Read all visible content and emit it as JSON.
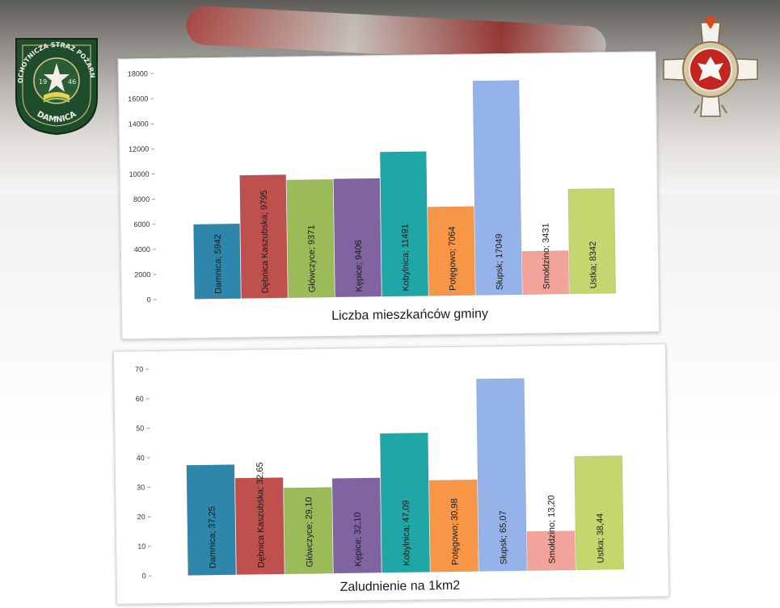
{
  "left_logo": {
    "text_top": "OCHOTNICZA STRAŻ POŻARNA",
    "text_bottom": "DAMNICA",
    "year_left": "19",
    "year_right": "46",
    "color": "#1f4d2c"
  },
  "chart_data": [
    {
      "type": "bar",
      "title": "Liczba mieszkańców gminy",
      "categories": [
        "Damnica",
        "Dębnica Kaszubska",
        "Główczyce",
        "Kępice",
        "Kobylnica",
        "Potęgowo",
        "Słupsk",
        "Smołdzino",
        "Ustka"
      ],
      "values": [
        5942,
        9795,
        9371,
        9406,
        11491,
        7064,
        17049,
        3431,
        8342
      ],
      "data_labels": [
        "Damnica; 5942",
        "Dębnica Kaszubska; 9795",
        "Główczyce; 9371",
        "Kępice; 9406",
        "Kobylnica; 11491",
        "Potęgowo; 7064",
        "Słupsk; 17049",
        "Smołdzino; 3431",
        "Ustka; 8342"
      ],
      "y_ticks": [
        "0",
        "2000",
        "4000",
        "6000",
        "8000",
        "10000",
        "12000",
        "14000",
        "16000",
        "18000"
      ],
      "ylim": [
        0,
        18000
      ],
      "colors": [
        "#2e86ab",
        "#c0504d",
        "#9bbb59",
        "#8064a2",
        "#1fa7a7",
        "#f79646",
        "#95b3e8",
        "#f2a39a",
        "#c4d66e"
      ]
    },
    {
      "type": "bar",
      "title": "Zaludnienie na 1km2",
      "categories": [
        "Damnica",
        "Dębnica Kaszubska",
        "Główczyce",
        "Kępice",
        "Kobylnica",
        "Potęgowo",
        "Słupsk",
        "Smołdzino",
        "Ustka"
      ],
      "values": [
        37.25,
        32.65,
        29.1,
        32.1,
        47.09,
        30.98,
        65.07,
        13.2,
        38.44
      ],
      "data_labels": [
        "Damnica; 37,25",
        "Dębnica Kaszubska; 32,65",
        "Główczyce; 29,10",
        "Kępice; 32,10",
        "Kobylnica; 47,09",
        "Potęgowo; 30,98",
        "Słupsk; 65,07",
        "Smołdzino; 13,20",
        "Ustka; 38,44"
      ],
      "y_ticks": [
        "0",
        "10",
        "20",
        "30",
        "40",
        "50",
        "60",
        "70"
      ],
      "ylim": [
        0,
        70
      ],
      "colors": [
        "#2e86ab",
        "#c0504d",
        "#9bbb59",
        "#8064a2",
        "#1fa7a7",
        "#f79646",
        "#95b3e8",
        "#f2a39a",
        "#c4d66e"
      ]
    }
  ]
}
